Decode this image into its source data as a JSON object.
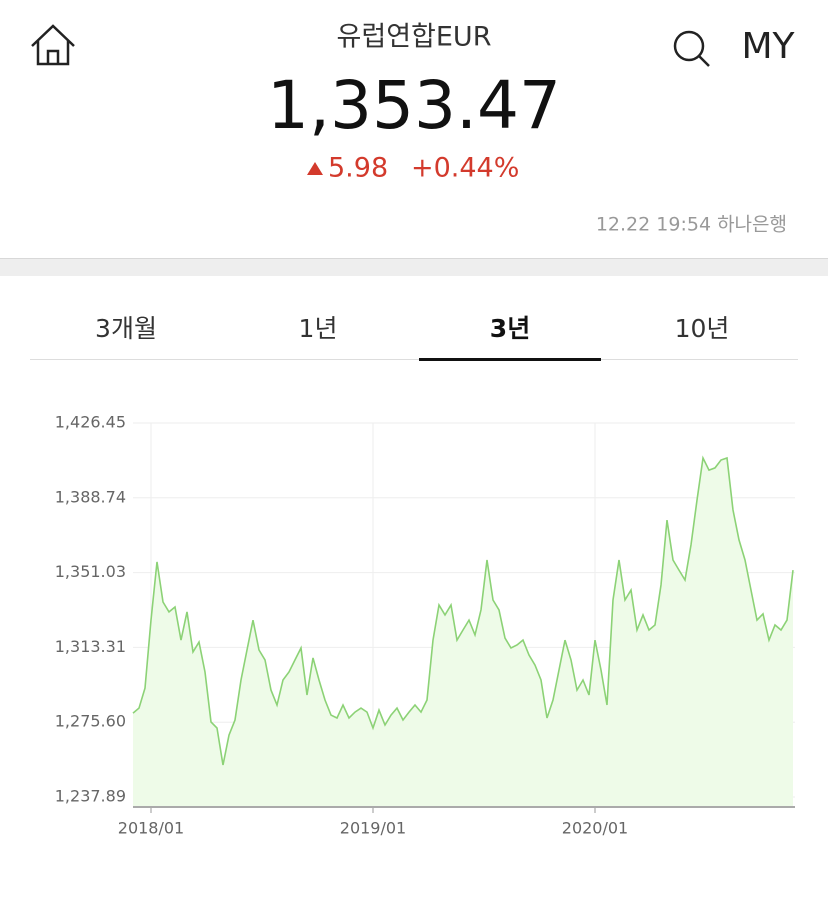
{
  "header": {
    "title": "유럽연합EUR",
    "price": "1,353.47",
    "change": "5.98",
    "change_pct": "+0.44%",
    "timestamp": "12.22 19:54 하나은행",
    "my": "MY"
  },
  "tabs": {
    "items": [
      "3개월",
      "1년",
      "3년",
      "10년"
    ],
    "active": 2
  },
  "chart_data": {
    "type": "line",
    "color": "#8cd276",
    "area_color": "#eefbe8",
    "grid": true,
    "categories": [
      null,
      null,
      null,
      "2018/01",
      null,
      null,
      null,
      null,
      null,
      null,
      null,
      null,
      null,
      null,
      null,
      null,
      null,
      null,
      null,
      null,
      null,
      null,
      null,
      null,
      null,
      null,
      null,
      null,
      null,
      null,
      null,
      null,
      null,
      null,
      null,
      null,
      null,
      null,
      null,
      null,
      "2019/01",
      null,
      null,
      null,
      null,
      null,
      null,
      null,
      null,
      null,
      null,
      null,
      null,
      null,
      null,
      null,
      null,
      null,
      null,
      null,
      null,
      null,
      null,
      null,
      null,
      null,
      null,
      null,
      null,
      null,
      null,
      null,
      null,
      null,
      null,
      null,
      null,
      "2020/01",
      null,
      null,
      null,
      null,
      null,
      null,
      null,
      null,
      null,
      null,
      null,
      null,
      null,
      null,
      null,
      null,
      null,
      null,
      null,
      null,
      null,
      null,
      null,
      null,
      null,
      null,
      null,
      null,
      null,
      null,
      null,
      null,
      null
    ],
    "values": [
      1280.2,
      1282.7,
      1292.8,
      1327.1,
      1356.4,
      1336.2,
      1331.2,
      1333.7,
      1317.0,
      1331.2,
      1311.0,
      1316.0,
      1300.9,
      1275.7,
      1272.7,
      1254.0,
      1269.1,
      1276.7,
      1296.9,
      1312.0,
      1327.1,
      1312.0,
      1307.0,
      1291.8,
      1284.3,
      1296.9,
      1300.9,
      1307.0,
      1313.0,
      1289.3,
      1308.0,
      1296.9,
      1286.8,
      1279.2,
      1277.7,
      1284.3,
      1277.7,
      1280.7,
      1282.7,
      1280.7,
      1272.7,
      1281.7,
      1274.2,
      1279.2,
      1282.7,
      1276.7,
      1280.7,
      1284.3,
      1280.7,
      1286.8,
      1317.0,
      1334.7,
      1329.7,
      1334.7,
      1317.0,
      1322.1,
      1327.1,
      1319.6,
      1332.2,
      1357.4,
      1337.2,
      1332.2,
      1318.0,
      1313.0,
      1314.5,
      1317.0,
      1309.5,
      1304.4,
      1296.9,
      1277.7,
      1286.8,
      1301.9,
      1317.0,
      1307.0,
      1291.8,
      1296.9,
      1289.3,
      1317.0,
      1301.9,
      1284.3,
      1337.2,
      1357.4,
      1337.2,
      1342.2,
      1322.1,
      1329.7,
      1322.1,
      1324.6,
      1344.8,
      1377.5,
      1357.4,
      1352.3,
      1347.3,
      1365.0,
      1387.6,
      1408.8,
      1402.7,
      1403.8,
      1407.8,
      1408.8,
      1382.6,
      1367.5,
      1357.4,
      1342.2,
      1327.1,
      1330.2,
      1317.0,
      1324.6,
      1322.1,
      1327.1,
      1352.3
    ],
    "ylim": [
      1232.85,
      1426.45
    ],
    "yticks": [
      {
        "value": 1237.89,
        "label": "1,237.89"
      },
      {
        "value": 1275.6,
        "label": "1,275.60"
      },
      {
        "value": 1313.31,
        "label": "1,313.31"
      },
      {
        "value": 1351.03,
        "label": "1,351.03"
      },
      {
        "value": 1388.74,
        "label": "1,388.74"
      },
      {
        "value": 1426.45,
        "label": "1,426.45"
      }
    ]
  }
}
